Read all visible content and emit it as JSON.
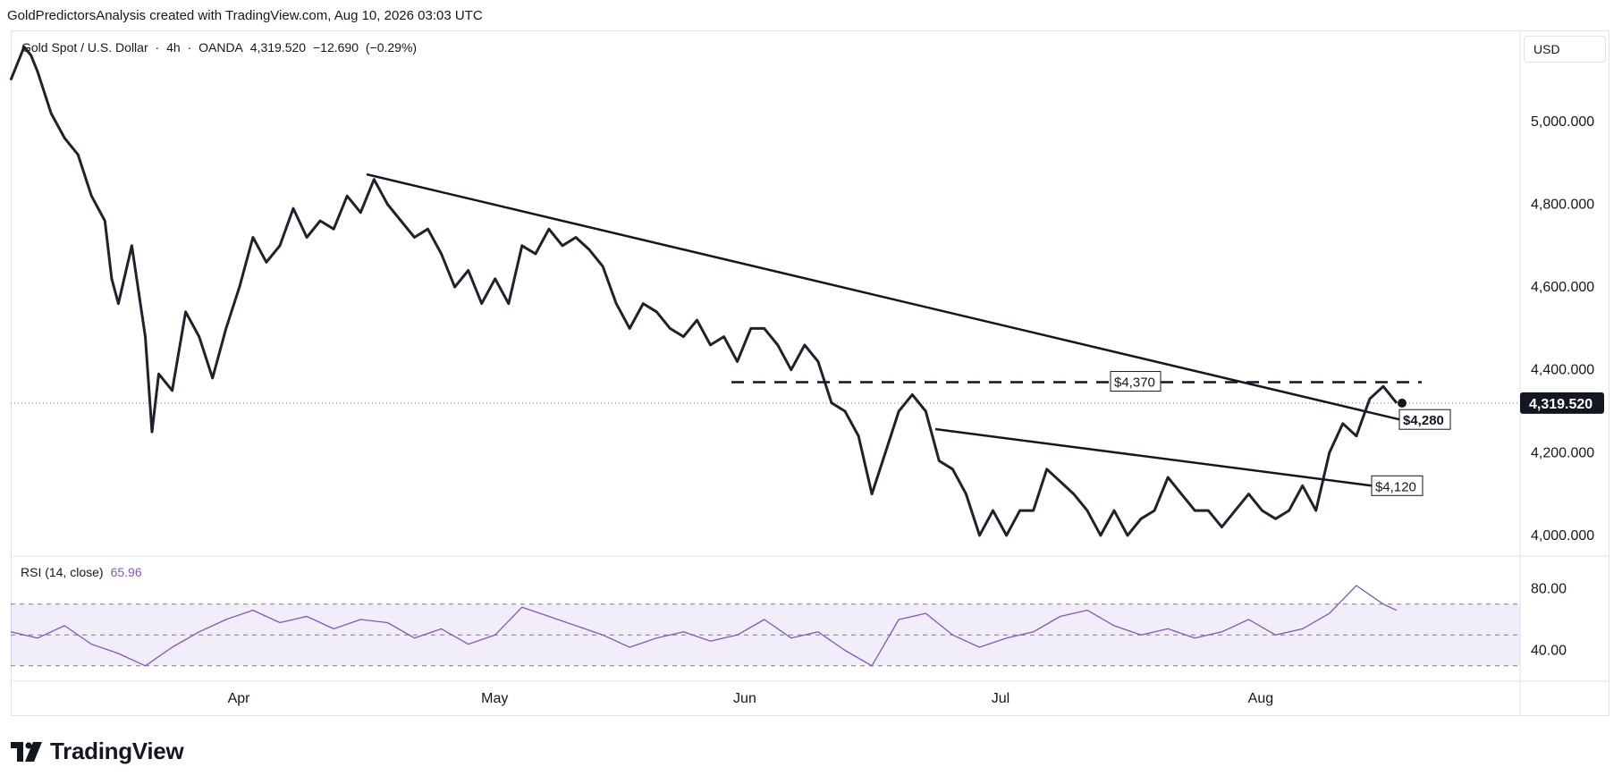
{
  "header": {
    "title": "GoldPredictorsAnalysis created with TradingView.com, Aug 10, 2026 03:03 UTC"
  },
  "symbol": {
    "name": "Gold Spot / U.S. Dollar",
    "interval": "4h",
    "exchange": "OANDA",
    "price": "4,319.520",
    "change": "−12.690",
    "change_pct": "(−0.29%)"
  },
  "price_scale": {
    "currency": "USD",
    "last_price_label": "4,319.520",
    "last_price_badge_color": "#131722"
  },
  "rsi": {
    "label": "RSI (14, close)",
    "value": "65.96",
    "color": "#7e57c2"
  },
  "footer": {
    "logo_text": "TradingView",
    "logo_icon": "tradingview-logo-icon"
  },
  "chart_data": [
    {
      "type": "line",
      "series": [
        {
          "values": [
            [
              0,
              5100
            ],
            [
              1,
              5180
            ],
            [
              1.5,
              5160
            ],
            [
              2,
              5120
            ],
            [
              3,
              5020
            ],
            [
              4,
              4960
            ],
            [
              5,
              4920
            ],
            [
              6,
              4820
            ],
            [
              7,
              4760
            ],
            [
              7.5,
              4620
            ],
            [
              8,
              4560
            ],
            [
              9,
              4700
            ],
            [
              10,
              4480
            ],
            [
              10.5,
              4250
            ],
            [
              11,
              4390
            ],
            [
              12,
              4350
            ],
            [
              13,
              4540
            ],
            [
              14,
              4480
            ],
            [
              15,
              4380
            ],
            [
              16,
              4500
            ],
            [
              17,
              4600
            ],
            [
              18,
              4720
            ],
            [
              19,
              4660
            ],
            [
              20,
              4700
            ],
            [
              21,
              4790
            ],
            [
              22,
              4720
            ],
            [
              23,
              4760
            ],
            [
              24,
              4740
            ],
            [
              25,
              4820
            ],
            [
              26,
              4780
            ],
            [
              27,
              4860
            ],
            [
              28,
              4800
            ],
            [
              29,
              4760
            ],
            [
              30,
              4720
            ],
            [
              31,
              4740
            ],
            [
              32,
              4680
            ],
            [
              33,
              4600
            ],
            [
              34,
              4640
            ],
            [
              35,
              4560
            ],
            [
              36,
              4620
            ],
            [
              37,
              4560
            ],
            [
              38,
              4700
            ],
            [
              39,
              4680
            ],
            [
              40,
              4740
            ],
            [
              41,
              4700
            ],
            [
              42,
              4720
            ],
            [
              43,
              4690
            ],
            [
              44,
              4650
            ],
            [
              45,
              4560
            ],
            [
              46,
              4500
            ],
            [
              47,
              4560
            ],
            [
              48,
              4540
            ],
            [
              49,
              4500
            ],
            [
              50,
              4480
            ],
            [
              51,
              4520
            ],
            [
              52,
              4460
            ],
            [
              53,
              4480
            ],
            [
              54,
              4420
            ],
            [
              55,
              4500
            ],
            [
              56,
              4500
            ],
            [
              57,
              4460
            ],
            [
              58,
              4400
            ],
            [
              59,
              4460
            ],
            [
              60,
              4420
            ],
            [
              61,
              4320
            ],
            [
              62,
              4300
            ],
            [
              63,
              4240
            ],
            [
              64,
              4100
            ],
            [
              65,
              4200
            ],
            [
              66,
              4300
            ],
            [
              67,
              4340
            ],
            [
              68,
              4300
            ],
            [
              69,
              4180
            ],
            [
              70,
              4160
            ],
            [
              71,
              4100
            ],
            [
              72,
              4000
            ],
            [
              73,
              4060
            ],
            [
              74,
              4000
            ],
            [
              75,
              4060
            ],
            [
              76,
              4060
            ],
            [
              77,
              4160
            ],
            [
              78,
              4130
            ],
            [
              79,
              4100
            ],
            [
              80,
              4060
            ],
            [
              81,
              4000
            ],
            [
              82,
              4060
            ],
            [
              83,
              4000
            ],
            [
              84,
              4040
            ],
            [
              85,
              4060
            ],
            [
              86,
              4140
            ],
            [
              87,
              4100
            ],
            [
              88,
              4060
            ],
            [
              89,
              4060
            ],
            [
              90,
              4020
            ],
            [
              91,
              4060
            ],
            [
              92,
              4100
            ],
            [
              93,
              4060
            ],
            [
              94,
              4040
            ],
            [
              95,
              4060
            ],
            [
              96,
              4120
            ],
            [
              97,
              4060
            ],
            [
              98,
              4200
            ],
            [
              99,
              4270
            ],
            [
              100,
              4240
            ],
            [
              101,
              4330
            ],
            [
              102,
              4360
            ],
            [
              103,
              4319.52
            ]
          ]
        }
      ],
      "x_labels": [
        "Apr",
        "May",
        "Jun",
        "Jul",
        "Aug"
      ],
      "y_ticks": [
        "5,000.000",
        "4,800.000",
        "4,600.000",
        "4,400.000",
        "4,200.000",
        "4,000.000"
      ],
      "ylim": [
        3950,
        5220
      ],
      "annotations": [
        {
          "type": "dashed-horizontal",
          "label": "$4,370",
          "y": 4370
        },
        {
          "type": "trendline",
          "label": "$4,280",
          "y_end": 4280
        },
        {
          "type": "trendline",
          "label": "$4,120",
          "y_end": 4120
        }
      ]
    },
    {
      "type": "line",
      "series": [
        {
          "name": "RSI (14, close)",
          "values": [
            [
              0,
              52
            ],
            [
              2,
              48
            ],
            [
              4,
              56
            ],
            [
              6,
              44
            ],
            [
              8,
              38
            ],
            [
              10,
              30
            ],
            [
              12,
              42
            ],
            [
              14,
              52
            ],
            [
              16,
              60
            ],
            [
              18,
              66
            ],
            [
              20,
              58
            ],
            [
              22,
              62
            ],
            [
              24,
              54
            ],
            [
              26,
              60
            ],
            [
              28,
              58
            ],
            [
              30,
              48
            ],
            [
              32,
              54
            ],
            [
              34,
              44
            ],
            [
              36,
              50
            ],
            [
              38,
              68
            ],
            [
              40,
              62
            ],
            [
              42,
              56
            ],
            [
              44,
              50
            ],
            [
              46,
              42
            ],
            [
              48,
              48
            ],
            [
              50,
              52
            ],
            [
              52,
              46
            ],
            [
              54,
              50
            ],
            [
              56,
              60
            ],
            [
              58,
              48
            ],
            [
              60,
              52
            ],
            [
              62,
              40
            ],
            [
              64,
              30
            ],
            [
              66,
              60
            ],
            [
              68,
              64
            ],
            [
              70,
              50
            ],
            [
              72,
              42
            ],
            [
              74,
              48
            ],
            [
              76,
              52
            ],
            [
              78,
              62
            ],
            [
              80,
              66
            ],
            [
              82,
              56
            ],
            [
              84,
              50
            ],
            [
              86,
              54
            ],
            [
              88,
              48
            ],
            [
              90,
              52
            ],
            [
              92,
              60
            ],
            [
              94,
              50
            ],
            [
              96,
              54
            ],
            [
              98,
              64
            ],
            [
              100,
              82
            ],
            [
              102,
              70
            ],
            [
              103,
              65.96
            ]
          ]
        }
      ],
      "y_ticks": [
        "80.00",
        "40.00"
      ],
      "ylim": [
        20,
        100
      ],
      "bands": {
        "upper": 70,
        "middle": 50,
        "lower": 30
      }
    }
  ]
}
